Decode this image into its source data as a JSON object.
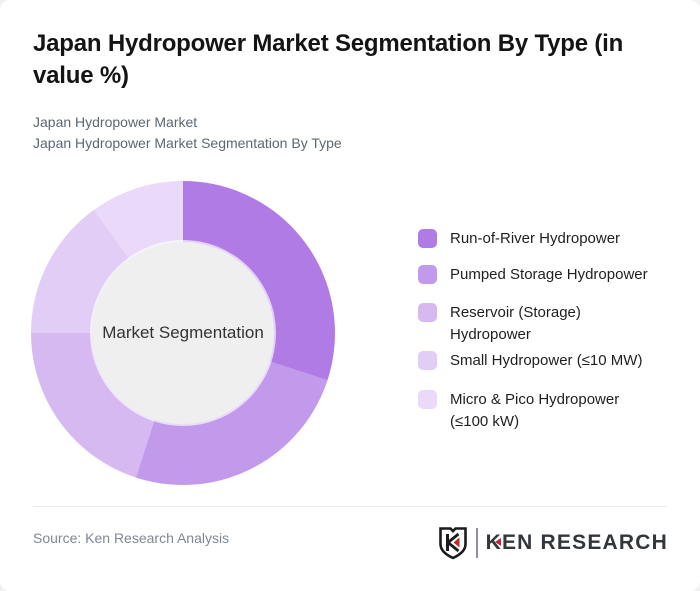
{
  "header": {
    "title": "Japan Hydropower Market Segmentation By Type (in value %)",
    "subtitle_line1": "Japan Hydropower Market",
    "subtitle_line2": "Japan Hydropower Market Segmentation By Type"
  },
  "chart_data": {
    "type": "pie",
    "variant": "donut",
    "title": "Japan Hydropower Market Segmentation By Type (in value %)",
    "center_label": "Market Segmentation",
    "unit": "value %",
    "legend_position": "right",
    "start_angle_deg": 0,
    "segments": [
      {
        "label": "Run-of-River Hydropower",
        "value": 30,
        "color": "#b17be6"
      },
      {
        "label": "Pumped Storage Hydropower",
        "value": 25,
        "color": "#c29aec"
      },
      {
        "label": "Reservoir (Storage) Hydropower",
        "value": 20,
        "color": "#d7b9f1"
      },
      {
        "label": "Small Hydropower (≤10 MW)",
        "value": 15,
        "color": "#e1cdf5"
      },
      {
        "label": "Micro & Pico Hydropower (≤100 kW)",
        "value": 10,
        "color": "#ead9f8"
      }
    ]
  },
  "legend": {
    "items": [
      {
        "lines": [
          "Run-of-River Hydropower"
        ],
        "color": "#b17be6"
      },
      {
        "lines": [
          "Pumped Storage Hydropower"
        ],
        "color": "#c29aec"
      },
      {
        "lines": [
          "Reservoir (Storage)",
          "Hydropower"
        ],
        "color": "#d7b9f1"
      },
      {
        "lines": [
          "Small Hydropower (≤10 MW)"
        ],
        "color": "#e1cdf5"
      },
      {
        "lines": [
          "Micro & Pico Hydropower",
          "(≤100 kW)"
        ],
        "color": "#ead9f8"
      }
    ]
  },
  "footer": {
    "source": "Source: Ken Research Analysis",
    "logo_text": "KEN RESEARCH"
  },
  "colors": {
    "accent_red": "#c1272d",
    "page_bg": "#f2f0f1",
    "card_bg": "#ffffff",
    "hole_bg": "#efeff0"
  }
}
